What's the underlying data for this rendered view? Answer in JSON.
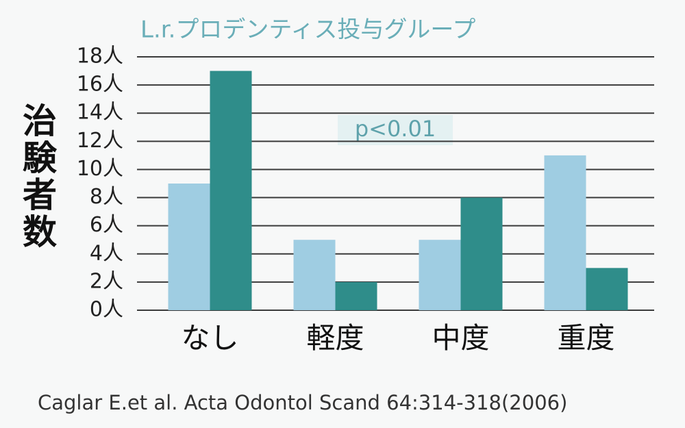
{
  "chart_data": {
    "type": "bar",
    "title": "L.r.プロデンティス投与グループ",
    "y_label": "治験者数",
    "annotation": "p<0.01",
    "source": "Caglar E.et al. Acta Odontol Scand 64:314-318(2006)",
    "categories": [
      "なし",
      "軽度",
      "中度",
      "重度"
    ],
    "series": [
      {
        "color": "#9fcde2",
        "values": [
          9,
          5,
          5,
          11
        ]
      },
      {
        "name": "L.r.プロデンティス投与グループ",
        "color": "#2f8d8a",
        "values": [
          17,
          2,
          8,
          3
        ]
      }
    ],
    "ylim": [
      0,
      18
    ],
    "yticks": [
      {
        "value": 0,
        "label": "0人"
      },
      {
        "value": 2,
        "label": "2人"
      },
      {
        "value": 4,
        "label": "4人"
      },
      {
        "value": 6,
        "label": "6人"
      },
      {
        "value": 8,
        "label": "8人"
      },
      {
        "value": 10,
        "label": "10人"
      },
      {
        "value": 12,
        "label": "12人"
      },
      {
        "value": 14,
        "label": "14人"
      },
      {
        "value": 16,
        "label": "16人"
      },
      {
        "value": 18,
        "label": "18人"
      }
    ],
    "grid": true
  }
}
